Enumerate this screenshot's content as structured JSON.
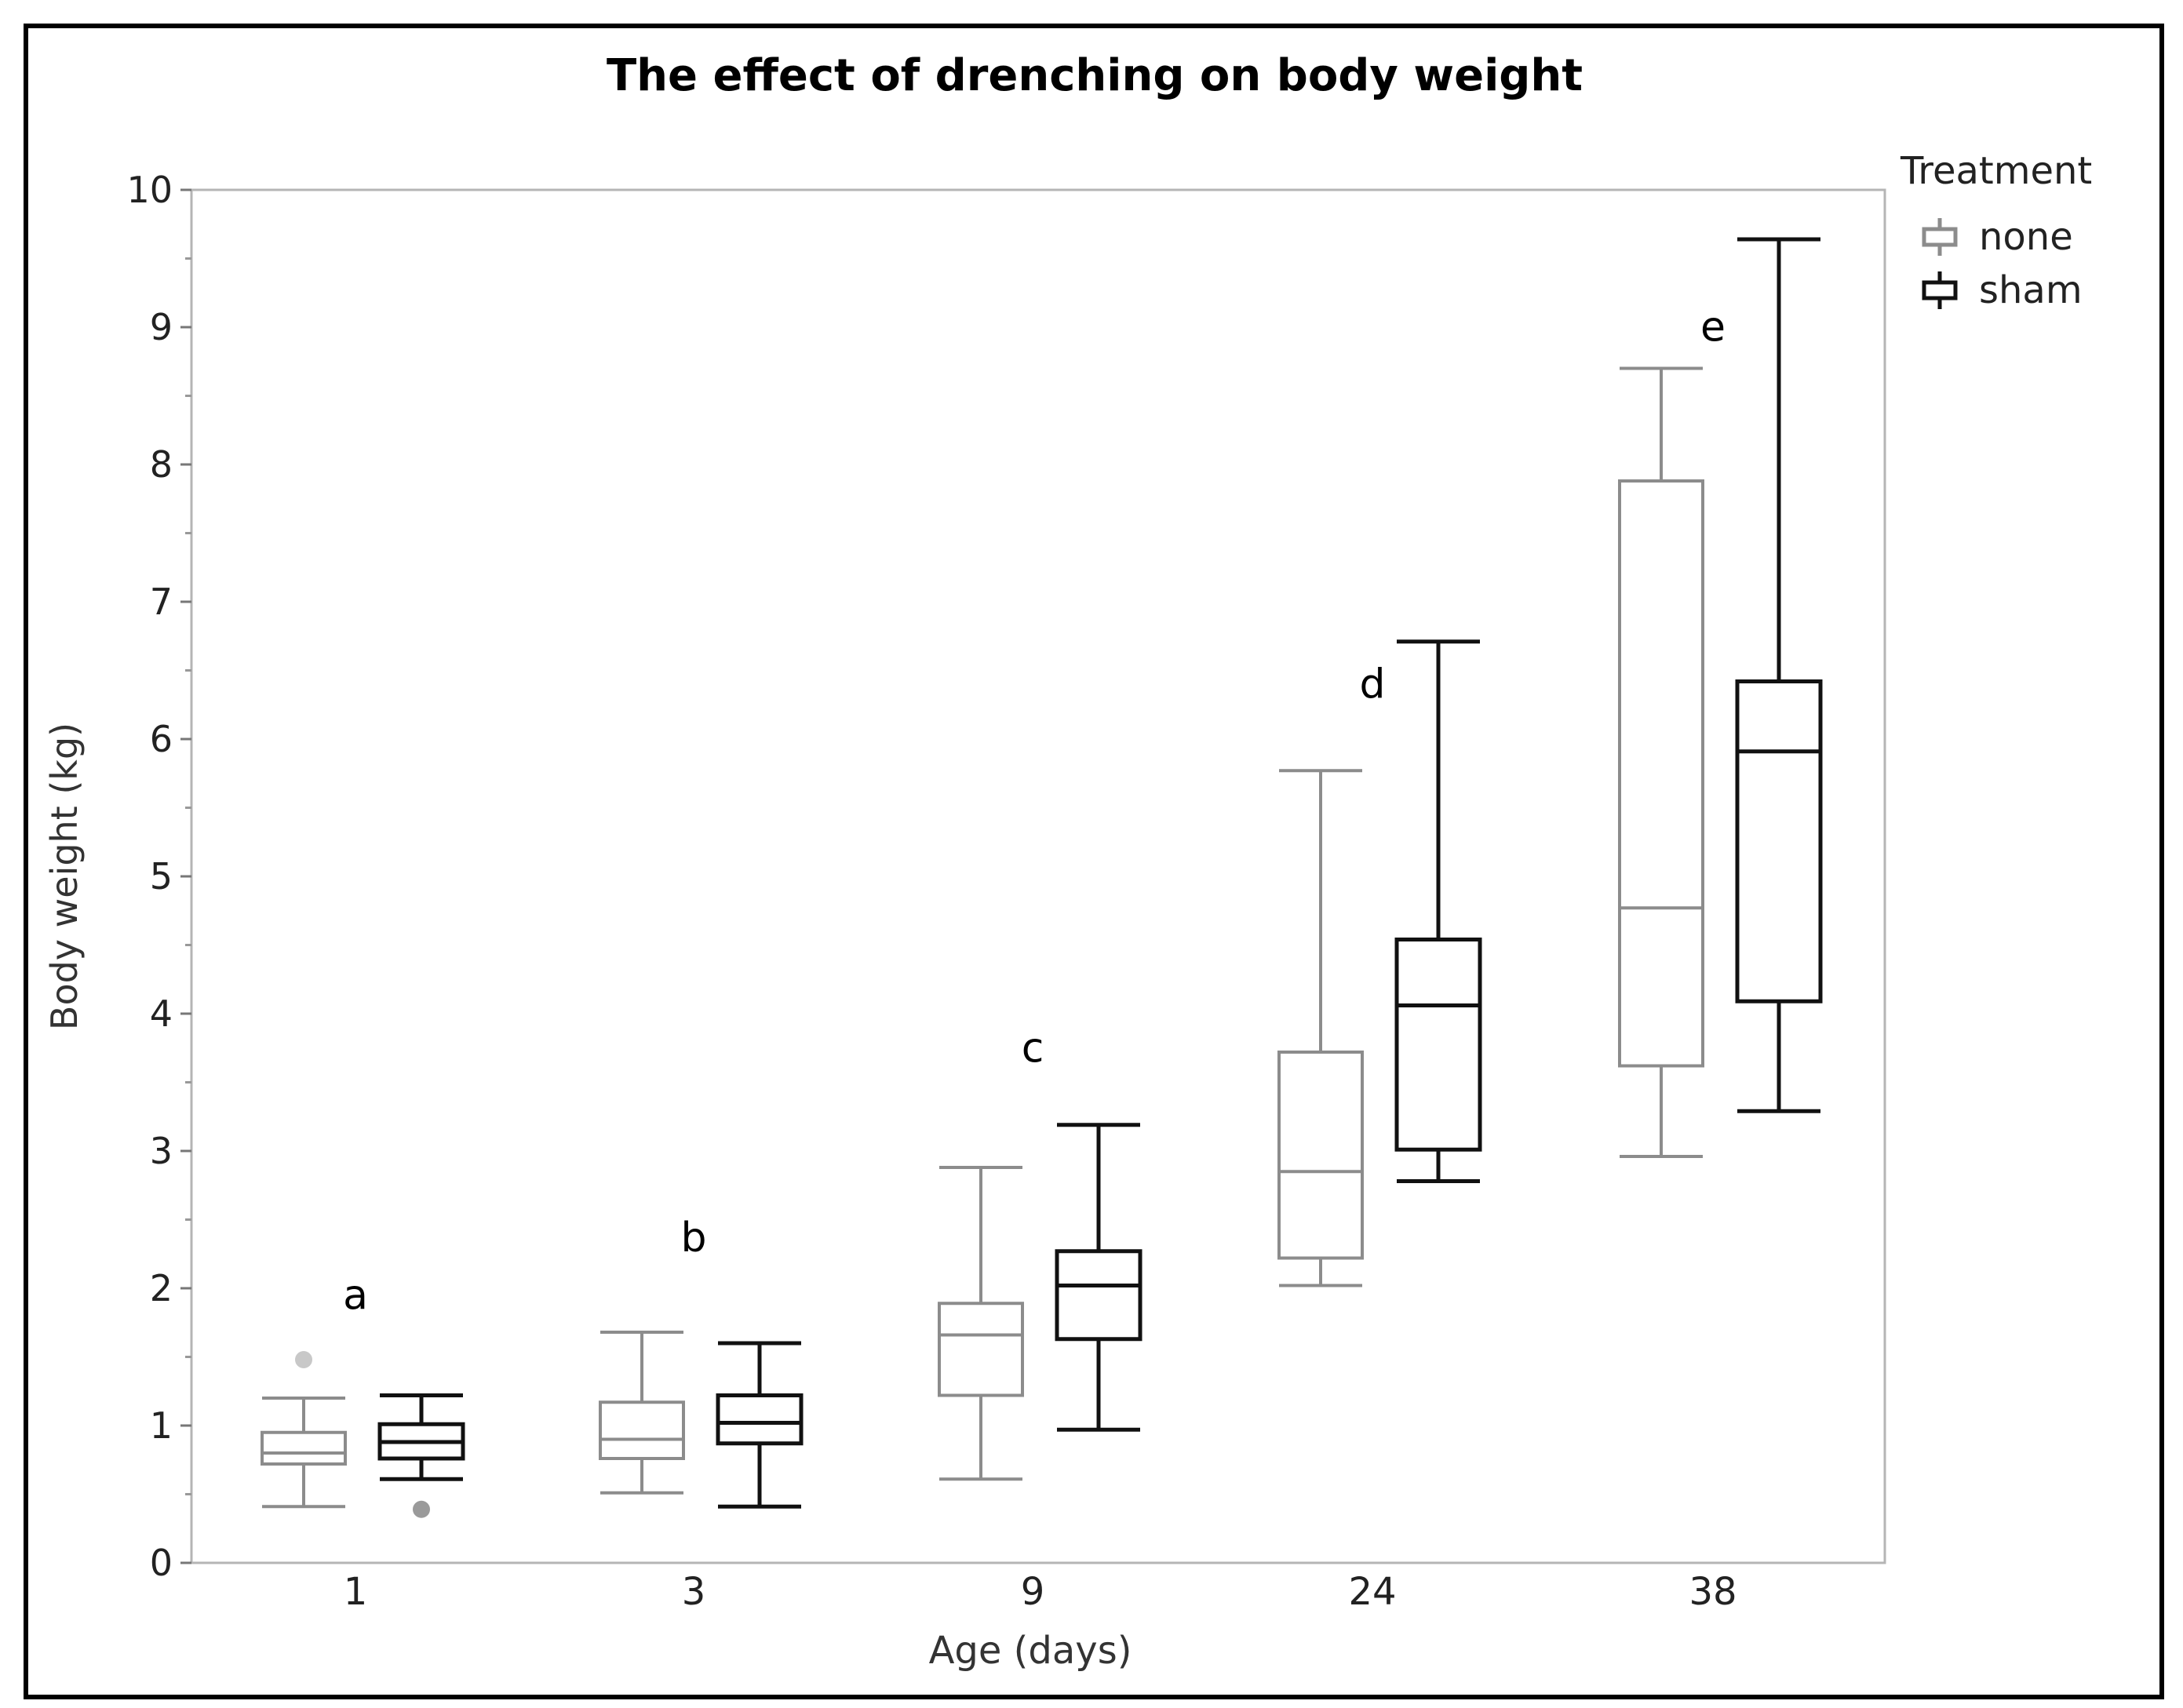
{
  "chart_data": {
    "type": "box",
    "title": "The effect of drenching on body weight",
    "xlabel": "Age (days)",
    "ylabel": "Body weight (kg)",
    "ylim": [
      0,
      10
    ],
    "yticks": [
      "0",
      "1",
      "2",
      "3",
      "4",
      "5",
      "6",
      "7",
      "8",
      "9",
      "10"
    ],
    "categories": [
      "1",
      "3",
      "9",
      "24",
      "38"
    ],
    "legend": {
      "title": "Treatment",
      "position": "top-right",
      "entries": [
        {
          "name": "none",
          "color": "#8c8c8c"
        },
        {
          "name": "sham",
          "color": "#111111"
        }
      ]
    },
    "series": [
      {
        "name": "none",
        "color": "#8c8c8c",
        "boxes": [
          {
            "min": 0.41,
            "q1": 0.72,
            "median": 0.8,
            "q3": 0.95,
            "max": 1.2,
            "outliers": [
              1.48
            ]
          },
          {
            "min": 0.51,
            "q1": 0.76,
            "median": 0.9,
            "q3": 1.17,
            "max": 1.68,
            "outliers": []
          },
          {
            "min": 0.61,
            "q1": 1.22,
            "median": 1.66,
            "q3": 1.89,
            "max": 2.88,
            "outliers": []
          },
          {
            "min": 2.02,
            "q1": 2.22,
            "median": 2.85,
            "q3": 3.72,
            "max": 5.77,
            "outliers": []
          },
          {
            "min": 2.96,
            "q1": 3.62,
            "median": 4.77,
            "q3": 7.88,
            "max": 8.7,
            "outliers": []
          }
        ]
      },
      {
        "name": "sham",
        "color": "#111111",
        "boxes": [
          {
            "min": 0.61,
            "q1": 0.76,
            "median": 0.88,
            "q3": 1.01,
            "max": 1.22,
            "outliers": [
              0.39
            ]
          },
          {
            "min": 0.41,
            "q1": 0.87,
            "median": 1.02,
            "q3": 1.22,
            "max": 1.6,
            "outliers": []
          },
          {
            "min": 0.97,
            "q1": 1.63,
            "median": 2.02,
            "q3": 2.27,
            "max": 3.19,
            "outliers": []
          },
          {
            "min": 2.78,
            "q1": 3.01,
            "median": 4.06,
            "q3": 4.54,
            "max": 6.71,
            "outliers": []
          },
          {
            "min": 3.29,
            "q1": 4.09,
            "median": 5.91,
            "q3": 6.42,
            "max": 9.64,
            "outliers": []
          }
        ]
      }
    ],
    "annotations": [
      {
        "text": "a",
        "category": "1",
        "y": 1.85
      },
      {
        "text": "b",
        "category": "3",
        "y": 2.27
      },
      {
        "text": "c",
        "category": "9",
        "y": 3.65
      },
      {
        "text": "d",
        "category": "24",
        "y": 6.3
      },
      {
        "text": "e",
        "category": "38",
        "y": 8.9
      }
    ]
  }
}
